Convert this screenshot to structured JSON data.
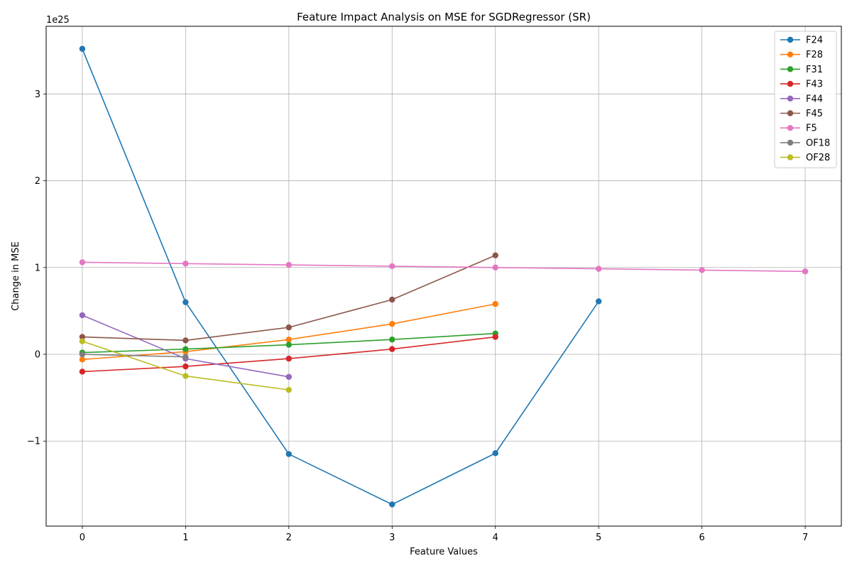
{
  "chart_data": {
    "type": "line",
    "title": "Feature Impact Analysis on MSE for SGDRegressor (SR)",
    "xlabel": "Feature Values",
    "ylabel": "Change in MSE",
    "y_offset_label": "1e25",
    "y_scale_factor": 1e+25,
    "xlim": [
      -0.35,
      7.35
    ],
    "ylim": [
      -1.98,
      3.78
    ],
    "x_ticks": [
      0,
      1,
      2,
      3,
      4,
      5,
      6,
      7
    ],
    "y_ticks": [
      -1,
      0,
      1,
      2,
      3
    ],
    "y_tick_labels": [
      "−1",
      "0",
      "1",
      "2",
      "3"
    ],
    "grid": true,
    "legend_position": "top-right",
    "series": [
      {
        "name": "F24",
        "color": "#1f77b4",
        "x": [
          0,
          1,
          2,
          3,
          4,
          5
        ],
        "y": [
          3.52,
          0.6,
          -1.15,
          -1.73,
          -1.14,
          0.61
        ]
      },
      {
        "name": "F28",
        "color": "#ff7f0e",
        "x": [
          0,
          1,
          2,
          3,
          4
        ],
        "y": [
          -0.06,
          0.03,
          0.17,
          0.35,
          0.58
        ]
      },
      {
        "name": "F31",
        "color": "#2ca02c",
        "x": [
          0,
          1,
          2,
          3,
          4
        ],
        "y": [
          0.02,
          0.06,
          0.11,
          0.17,
          0.24
        ]
      },
      {
        "name": "F43",
        "color": "#d62728",
        "x": [
          0,
          1,
          2,
          3,
          4
        ],
        "y": [
          -0.2,
          -0.14,
          -0.05,
          0.06,
          0.2
        ]
      },
      {
        "name": "F44",
        "color": "#9467bd",
        "x": [
          0,
          1,
          2
        ],
        "y": [
          0.45,
          -0.05,
          -0.26
        ]
      },
      {
        "name": "F45",
        "color": "#8c564b",
        "x": [
          0,
          1,
          2,
          3,
          4
        ],
        "y": [
          0.2,
          0.16,
          0.31,
          0.63,
          1.14
        ]
      },
      {
        "name": "F5",
        "color": "#e377c2",
        "x": [
          0,
          1,
          2,
          3,
          4,
          5,
          6,
          7
        ],
        "y": [
          1.06,
          1.045,
          1.03,
          1.015,
          1.0,
          0.985,
          0.97,
          0.955
        ]
      },
      {
        "name": "OF18",
        "color": "#7f7f7f",
        "x": [
          0,
          1
        ],
        "y": [
          0.0,
          -0.03
        ]
      },
      {
        "name": "OF28",
        "color": "#bcbd22",
        "x": [
          0,
          1,
          2
        ],
        "y": [
          0.15,
          -0.25,
          -0.41
        ]
      }
    ]
  }
}
